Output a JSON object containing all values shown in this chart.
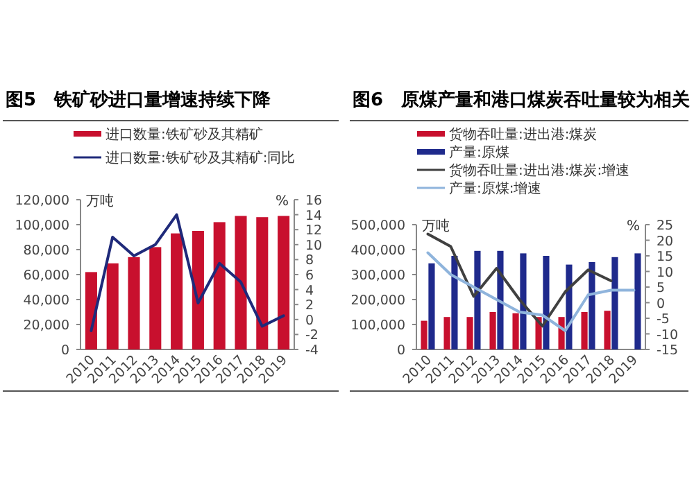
{
  "chart_data": [
    {
      "type": "bar",
      "title": "图5　铁矿砂进口量增速持续下降",
      "ylabel": "万吨",
      "y2label": "%",
      "legend": "top",
      "categories": [
        "2010",
        "2011",
        "2012",
        "2013",
        "2014",
        "2015",
        "2016",
        "2017",
        "2018",
        "2019"
      ],
      "series": [
        {
          "name": "进口数量:铁矿砂及其精矿",
          "color": "#c8102e",
          "values": [
            62000,
            69000,
            74000,
            82000,
            93000,
            95000,
            102000,
            107000,
            106000,
            107000
          ]
        },
        {
          "name": "进口数量:铁矿砂及其精矿:同比",
          "type": "line",
          "axis": "y2",
          "color": "#1f2a7a",
          "values": [
            -1.5,
            11,
            8.5,
            10,
            14,
            2.2,
            7.5,
            5,
            -0.9,
            0.5
          ]
        }
      ],
      "ylim": [
        0,
        120000
      ],
      "yticks": [
        0,
        {
          "value": 20000,
          "label": "20,000"
        },
        {
          "value": 40000,
          "label": "40,000"
        },
        {
          "value": 60000,
          "label": "60,000"
        },
        {
          "value": 80000,
          "label": "80,000"
        },
        {
          "value": 100000,
          "label": "100,000"
        },
        {
          "value": 120000,
          "label": "120,000"
        }
      ],
      "y2lim": [
        -4,
        16
      ],
      "y2ticks": [
        -4,
        -2,
        0,
        2,
        4,
        6,
        8,
        10,
        12,
        14,
        16
      ]
    },
    {
      "type": "bar",
      "title": "图6　原煤产量和港口煤炭吞吐量较为相关",
      "ylabel": "万吨",
      "y2label": "%",
      "legend": "top",
      "categories": [
        "2010",
        "2011",
        "2012",
        "2013",
        "2014",
        "2015",
        "2016",
        "2017",
        "2018",
        "2019"
      ],
      "series": [
        {
          "name": "货物吞吐量:进出港:煤炭",
          "color": "#c8102e",
          "values": [
            115000,
            130000,
            130000,
            150000,
            145000,
            130000,
            130000,
            150000,
            155000,
            null
          ]
        },
        {
          "name": "产量:原煤",
          "color": "#1f2a8c",
          "values": [
            345000,
            375000,
            395000,
            395000,
            385000,
            375000,
            340000,
            350000,
            370000,
            385000
          ]
        },
        {
          "name": "货物吞吐量:进出港:煤炭:增速",
          "type": "line",
          "axis": "y2",
          "color": "#404040",
          "values": [
            22,
            18,
            2,
            11,
            1,
            -7.5,
            3.5,
            10.5,
            7,
            null
          ]
        },
        {
          "name": "产量:原煤:增速",
          "type": "line",
          "axis": "y2",
          "color": "#8fb4dc",
          "values": [
            16,
            9,
            5,
            1,
            -3,
            -4,
            -9,
            2.5,
            4,
            4
          ]
        }
      ],
      "ylim": [
        0,
        500000
      ],
      "yticks": [
        0,
        {
          "value": 100000,
          "label": "100,000"
        },
        {
          "value": 200000,
          "label": "200,000"
        },
        {
          "value": 300000,
          "label": "300,000"
        },
        {
          "value": 400000,
          "label": "400,000"
        },
        {
          "value": 500000,
          "label": "500,000"
        }
      ],
      "y2lim": [
        -15,
        25
      ],
      "y2ticks": [
        -15,
        -10,
        -5,
        0,
        5,
        10,
        15,
        20,
        25
      ]
    }
  ]
}
